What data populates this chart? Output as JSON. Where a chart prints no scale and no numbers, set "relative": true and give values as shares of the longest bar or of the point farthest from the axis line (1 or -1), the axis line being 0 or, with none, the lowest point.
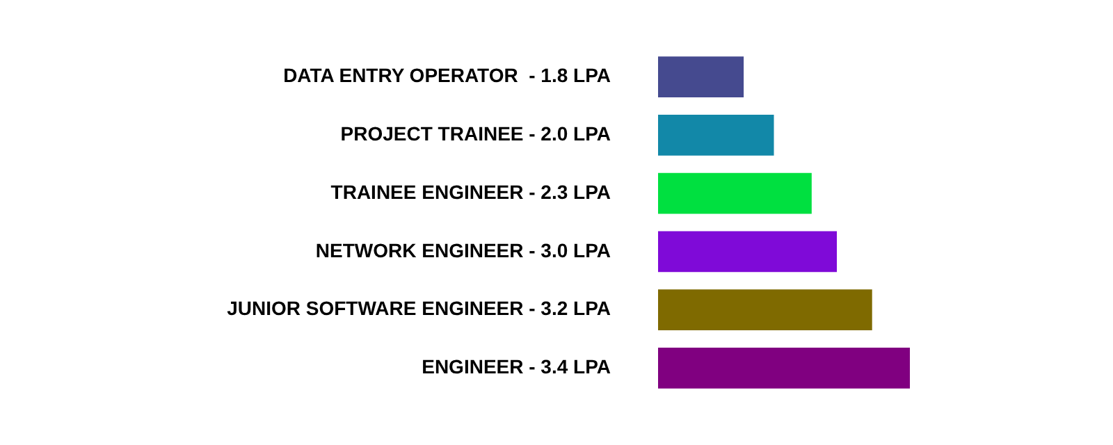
{
  "chart_data": {
    "type": "bar",
    "orientation": "horizontal",
    "relative": true,
    "categories": [
      "DATA ENTRY OPERATOR  - 1.8 LPA",
      "PROJECT TRAINEE - 2.0 LPA",
      "TRAINEE ENGINEER - 2.3 LPA",
      "NETWORK ENGINEER - 3.0 LPA",
      "JUNIOR SOFTWARE ENGINEER - 3.2 LPA",
      "ENGINEER - 3.4 LPA"
    ],
    "values": [
      0.34,
      0.46,
      0.61,
      0.71,
      0.85,
      1
    ],
    "colors": [
      "#454a8f",
      "#1288a8",
      "#00e040",
      "#7f0ad8",
      "#7f6a00",
      "#800080"
    ]
  }
}
